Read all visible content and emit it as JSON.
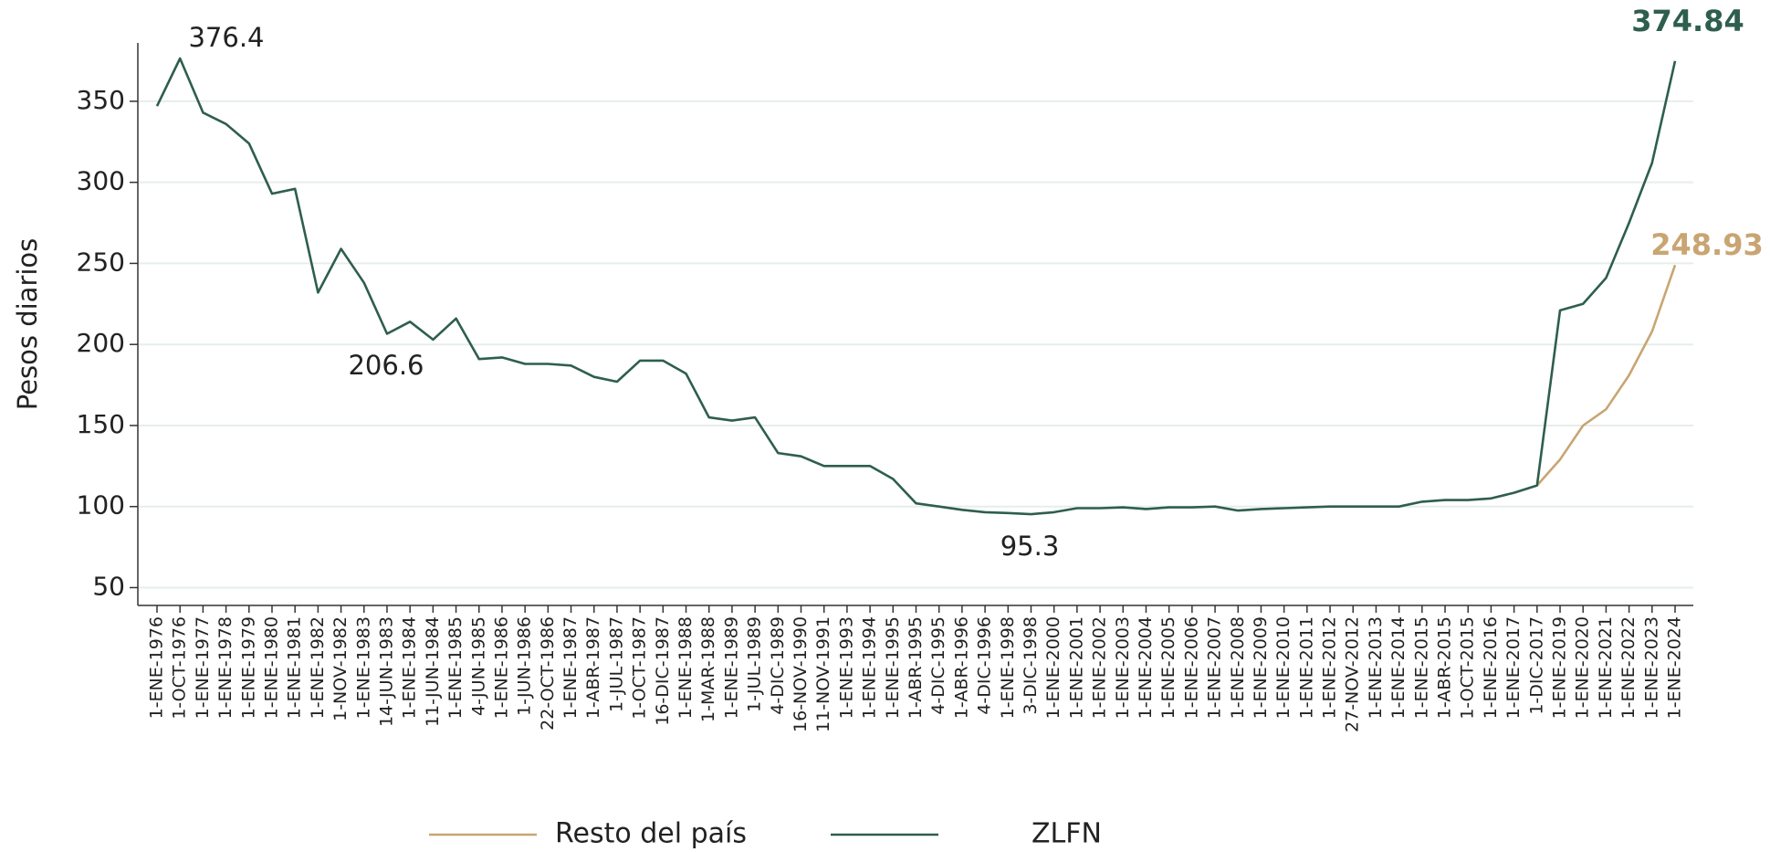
{
  "chart_data": {
    "type": "line",
    "y_label": "Pesos diarios",
    "categories": [
      "1-ENE-1976",
      "1-OCT-1976",
      "1-ENE-1977",
      "1-ENE-1978",
      "1-ENE-1979",
      "1-ENE-1980",
      "1-ENE-1981",
      "1-ENE-1982",
      "1-NOV-1982",
      "1-ENE-1983",
      "14-JUN-1983",
      "1-ENE-1984",
      "11-JUN-1984",
      "1-ENE-1985",
      "4-JUN-1985",
      "1-ENE-1986",
      "1-JUN-1986",
      "22-OCT-1986",
      "1-ENE-1987",
      "1-ABR-1987",
      "1-JUL-1987",
      "1-OCT-1987",
      "16-DIC-1987",
      "1-ENE-1988",
      "1-MAR-1988",
      "1-ENE-1989",
      "1-JUL-1989",
      "4-DIC-1989",
      "16-NOV-1990",
      "11-NOV-1991",
      "1-ENE-1993",
      "1-ENE-1994",
      "1-ENE-1995",
      "1-ABR-1995",
      "4-DIC-1995",
      "1-ABR-1996",
      "4-DIC-1996",
      "1-ENE-1998",
      "3-DIC-1998",
      "1-ENE-2000",
      "1-ENE-2001",
      "1-ENE-2002",
      "1-ENE-2003",
      "1-ENE-2004",
      "1-ENE-2005",
      "1-ENE-2006",
      "1-ENE-2007",
      "1-ENE-2008",
      "1-ENE-2009",
      "1-ENE-2010",
      "1-ENE-2011",
      "1-ENE-2012",
      "27-NOV-2012",
      "1-ENE-2013",
      "1-ENE-2014",
      "1-ENE-2015",
      "1-ABR-2015",
      "1-OCT-2015",
      "1-ENE-2016",
      "1-ENE-2017",
      "1-DIC-2017",
      "1-ENE-2019",
      "1-ENE-2020",
      "1-ENE-2021",
      "1-ENE-2022",
      "1-ENE-2023",
      "1-ENE-2024"
    ],
    "series": [
      {
        "name": "Resto del país",
        "color": "#c8a572",
        "values": [
          null,
          null,
          null,
          null,
          null,
          null,
          null,
          null,
          null,
          null,
          null,
          null,
          null,
          null,
          null,
          null,
          null,
          null,
          null,
          null,
          null,
          null,
          null,
          null,
          null,
          null,
          null,
          null,
          null,
          null,
          null,
          null,
          null,
          null,
          null,
          null,
          null,
          null,
          null,
          null,
          null,
          null,
          null,
          null,
          null,
          null,
          null,
          null,
          null,
          null,
          null,
          null,
          null,
          null,
          null,
          null,
          null,
          null,
          null,
          null,
          113,
          129,
          150,
          160,
          181,
          208,
          248.93
        ]
      },
      {
        "name": "ZLFN",
        "color": "#2e5e4e",
        "values": [
          347,
          376.4,
          343,
          336,
          324,
          293,
          296,
          232,
          259,
          238,
          206.6,
          214,
          203,
          216,
          191,
          192,
          188,
          188,
          187,
          180,
          177,
          190,
          190,
          182,
          155,
          153,
          155,
          133,
          131,
          125,
          125,
          125,
          117,
          102,
          100,
          98,
          96.5,
          96,
          95.3,
          96.5,
          99,
          99,
          99.5,
          98.5,
          99.5,
          99.5,
          100,
          97.5,
          98.5,
          99,
          99.5,
          100,
          100,
          100,
          100,
          103,
          104,
          104,
          105,
          108.5,
          113,
          221,
          225,
          241,
          275,
          312,
          374.84
        ]
      }
    ],
    "annotations": [
      "376.4",
      "206.6",
      "95.3",
      "374.84",
      "248.93"
    ],
    "ylim": [
      39,
      386
    ],
    "yticks": [
      50,
      100,
      150,
      200,
      250,
      300,
      350
    ],
    "grid": true,
    "legend": "bottom"
  }
}
